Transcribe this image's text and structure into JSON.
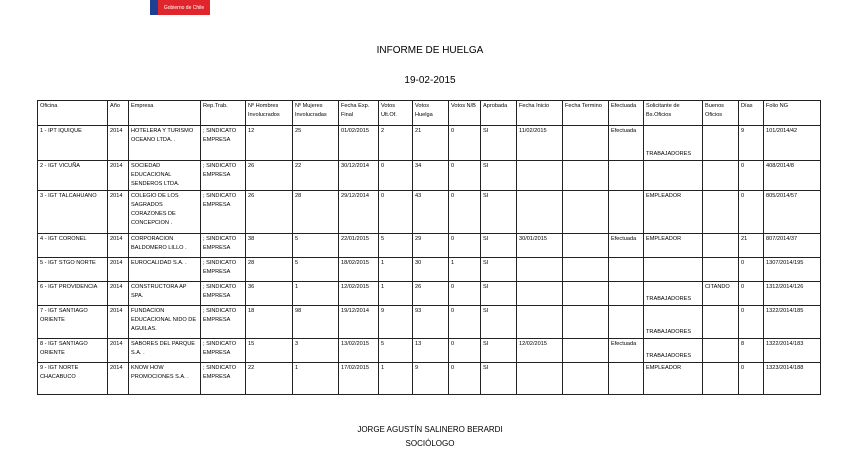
{
  "logo": {
    "text": "Gobierno de Chile",
    "colors": {
      "blue": "#1f3f93",
      "red": "#e0262c"
    }
  },
  "title": "INFORME DE HUELGA",
  "date": "19-02-2015",
  "table": {
    "headers": [
      "Oficina",
      "Año",
      "Empresa",
      "Rep.Trab.",
      "Nº Hombres Involucrados",
      "Nº Mujeres Involucradas",
      "Fecha Exp. Final",
      "Votos Ult.Of.",
      "Votos Huelga",
      "Votos N/B",
      "Aprobada",
      "Fecha Inicio",
      "Fecha Termino",
      "Efectuada",
      "Solicitante de Bs.Oficios",
      "Buenos Oficios",
      "Días",
      "Folio NG"
    ],
    "rows": [
      [
        "1 - IPT IQUIQUE",
        "2014",
        "HOTELERA Y TURISMO OCEANO LTDA. .",
        "; SINDICATO EMPRESA",
        "12",
        "25",
        "01/02/2015",
        "2",
        "21",
        "0",
        "SI",
        "11/02/2015",
        "",
        "Efectuada",
        "TRABAJADORES",
        "",
        "9",
        "101/2014/42"
      ],
      [
        "2 - IGT VICUÑA",
        "2014",
        "SOCIEDAD EDUCACIONAL SENDEROS LTDA.",
        "; SINDICATO EMPRESA",
        "26",
        "22",
        "30/12/2014",
        "0",
        "34",
        "0",
        "SI",
        "",
        "",
        "",
        "",
        "",
        "0",
        "408/2014/8"
      ],
      [
        "3 - IGT TALCAHUANO",
        "2014",
        "COLEGIO DE LOS SAGRADOS CORAZONES DE CONCEPCION .",
        "; SINDICATO EMPRESA",
        "26",
        "28",
        "29/12/2014",
        "0",
        "43",
        "0",
        "SI",
        "",
        "",
        "",
        "EMPLEADOR",
        "",
        "0",
        "805/2014/57"
      ],
      [
        "4 - IGT CORONEL",
        "2014",
        "CORPORACION BALDOMERO LILLO .",
        "; SINDICATO EMPRESA",
        "38",
        "5",
        "22/01/2015",
        "5",
        "29",
        "0",
        "SI",
        "30/01/2015",
        "",
        "Efectuada",
        "EMPLEADOR",
        "",
        "21",
        "807/2014/37"
      ],
      [
        "5 - IGT STGO NORTE",
        "2014",
        "EUROCALIDAD S.A. .",
        "; SINDICATO EMPRESA",
        "28",
        "5",
        "18/02/2015",
        "1",
        "30",
        "1",
        "SI",
        "",
        "",
        "",
        "",
        "",
        "0",
        "1307/2014/195"
      ],
      [
        "6 - IGT PROVIDENCIA",
        "2014",
        "CONSTRUCTORA AP SPA.",
        "; SINDICATO EMPRESA",
        "36",
        "1",
        "12/02/2015",
        "1",
        "26",
        "0",
        "SI",
        "",
        "",
        "",
        "TRABAJADORES",
        "CITANDO",
        "0",
        "1312/2014/126"
      ],
      [
        "7 - IGT SANTIAGO ORIENTE",
        "2014",
        "FUNDACION EDUCACIONAL NIDO DE AGUILAS.",
        "; SINDICATO EMPRESA",
        "18",
        "98",
        "19/12/2014",
        "9",
        "93",
        "0",
        "SI",
        "",
        "",
        "",
        "TRABAJADORES",
        "",
        "0",
        "1322/2014/185"
      ],
      [
        "8 - IGT SANTIAGO ORIENTE",
        "2014",
        "SABORES DEL PARQUE S.A. .",
        "; SINDICATO EMPRESA",
        "15",
        "3",
        "13/02/2015",
        "5",
        "13",
        "0",
        "SI",
        "12/02/2015",
        "",
        "Efectuada",
        "TRABAJADORES",
        "",
        "8",
        "1322/2014/183"
      ],
      [
        "9 - IGT NORTE CHACABUCO",
        "2014",
        "KNOW HOW PROMOCIONES S.A. .",
        "; SINDICATO EMPRESA",
        "22",
        "1",
        "17/02/2015",
        "1",
        "9",
        "0",
        "SI",
        "",
        "",
        "",
        "EMPLEADOR",
        "",
        "0",
        "1323/2014/188"
      ]
    ]
  },
  "signature": {
    "name": "JORGE AGUSTÍN SALINERO BERARDI",
    "role": "SOCIÓLOGO"
  }
}
